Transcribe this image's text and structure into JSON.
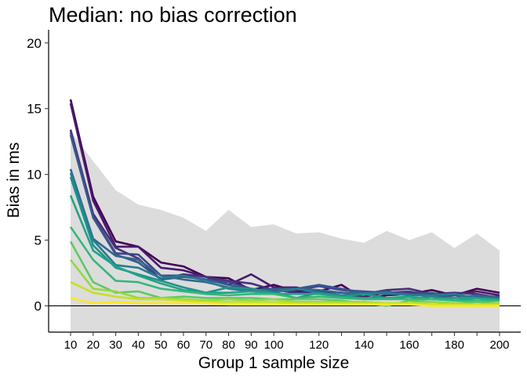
{
  "chart_data": {
    "type": "line",
    "title": "Median: no bias correction",
    "xlabel": "Group 1 sample size",
    "ylabel": "Bias in ms",
    "xlim": [
      10,
      200
    ],
    "ylim": [
      -2,
      21
    ],
    "x_ticks": [
      10,
      20,
      30,
      40,
      50,
      60,
      70,
      80,
      90,
      100,
      120,
      140,
      160,
      180,
      200
    ],
    "y_ticks": [
      0,
      5,
      10,
      15,
      20
    ],
    "grid": false,
    "legend": "none",
    "reference_line": 0,
    "x": [
      10,
      20,
      30,
      40,
      50,
      60,
      70,
      80,
      90,
      100,
      110,
      120,
      130,
      140,
      150,
      160,
      170,
      180,
      190,
      200
    ],
    "band": {
      "color": "#dcdcdc",
      "upper": [
        13.3,
        11.0,
        8.8,
        7.7,
        7.3,
        6.7,
        5.7,
        7.3,
        6.0,
        6.2,
        5.5,
        5.6,
        5.1,
        4.8,
        5.7,
        5.0,
        5.6,
        4.4,
        5.5,
        4.2
      ],
      "lower": [
        -2,
        -2,
        -2,
        -2,
        -2,
        -2,
        -2,
        -2,
        -2,
        -2,
        -2,
        -2,
        -2,
        -2,
        -2,
        -2,
        -2,
        -2,
        -2,
        -2
      ]
    },
    "series": [
      {
        "color": "#440154",
        "values": [
          15.7,
          8.3,
          4.9,
          4.5,
          3.3,
          3.0,
          2.2,
          2.1,
          1.2,
          1.6,
          1.1,
          1.1,
          1.6,
          0.5,
          0.8,
          0.9,
          1.2,
          0.8,
          1.3,
          1.0
        ]
      },
      {
        "color": "#481a6c",
        "values": [
          15.4,
          8.0,
          4.5,
          4.5,
          2.9,
          2.7,
          2.2,
          1.6,
          2.4,
          1.4,
          1.4,
          1.0,
          0.8,
          0.7,
          1.0,
          1.0,
          0.9,
          0.9,
          1.1,
          0.8
        ]
      },
      {
        "color": "#472f7d",
        "values": [
          13.4,
          7.0,
          4.4,
          3.6,
          2.0,
          2.4,
          2.2,
          1.9,
          1.7,
          1.2,
          1.0,
          1.1,
          1.0,
          0.9,
          1.2,
          1.3,
          0.9,
          1.0,
          0.9,
          0.6
        ]
      },
      {
        "color": "#414487",
        "values": [
          13.2,
          6.8,
          4.0,
          3.9,
          2.3,
          2.3,
          2.0,
          1.8,
          1.3,
          1.1,
          1.2,
          1.5,
          1.2,
          1.1,
          1.0,
          1.1,
          0.8,
          0.8,
          0.7,
          0.7
        ]
      },
      {
        "color": "#39568c",
        "values": [
          13.0,
          6.7,
          3.9,
          3.3,
          2.0,
          2.2,
          2.0,
          1.6,
          1.2,
          1.3,
          1.3,
          1.6,
          1.3,
          1.0,
          1.1,
          0.8,
          1.0,
          0.6,
          0.7,
          0.5
        ]
      },
      {
        "color": "#31688e",
        "values": [
          10.4,
          5.1,
          3.8,
          3.5,
          2.3,
          2.0,
          1.8,
          1.4,
          1.1,
          1.2,
          1.3,
          1.2,
          1.0,
          1.0,
          0.9,
          0.9,
          0.7,
          0.6,
          0.8,
          0.6
        ]
      },
      {
        "color": "#287c8e",
        "values": [
          10.1,
          5.0,
          3.1,
          2.9,
          2.1,
          2.3,
          1.9,
          1.3,
          1.1,
          1.0,
          1.3,
          1.0,
          0.8,
          0.9,
          1.0,
          0.8,
          0.8,
          0.9,
          0.6,
          0.5
        ]
      },
      {
        "color": "#21918c",
        "values": [
          9.8,
          4.6,
          2.9,
          2.4,
          1.9,
          1.4,
          1.0,
          1.4,
          1.3,
          1.0,
          0.6,
          1.0,
          0.7,
          0.9,
          0.6,
          0.5,
          0.7,
          0.4,
          0.6,
          0.5
        ]
      },
      {
        "color": "#20a486",
        "values": [
          8.4,
          4.2,
          3.0,
          2.3,
          1.7,
          1.2,
          1.0,
          1.0,
          1.1,
          0.9,
          0.9,
          0.9,
          0.7,
          0.6,
          0.6,
          0.7,
          0.5,
          0.6,
          0.6,
          0.4
        ]
      },
      {
        "color": "#35b779",
        "values": [
          6.0,
          3.5,
          1.9,
          1.8,
          1.3,
          1.1,
          0.9,
          0.8,
          0.9,
          0.9,
          0.6,
          0.7,
          0.6,
          0.5,
          0.5,
          0.5,
          0.5,
          0.4,
          0.4,
          0.4
        ]
      },
      {
        "color": "#5ec962",
        "values": [
          4.9,
          1.8,
          1.0,
          1.1,
          0.6,
          0.7,
          0.6,
          0.6,
          0.6,
          0.5,
          0.5,
          0.5,
          0.4,
          0.2,
          0.0,
          0.4,
          0.3,
          0.2,
          0.3,
          0.2
        ]
      },
      {
        "color": "#95d840",
        "values": [
          3.5,
          1.3,
          1.1,
          0.6,
          0.6,
          0.5,
          0.4,
          0.5,
          0.4,
          0.5,
          0.3,
          0.3,
          0.3,
          0.3,
          0.2,
          0.2,
          0.3,
          0.2,
          0.1,
          0.2
        ]
      },
      {
        "color": "#c8e020",
        "values": [
          1.8,
          1.0,
          0.7,
          0.5,
          0.5,
          0.4,
          0.3,
          0.3,
          0.3,
          0.3,
          0.2,
          0.2,
          0.2,
          0.2,
          0.2,
          0.2,
          0.1,
          0.1,
          0.1,
          0.1
        ]
      },
      {
        "color": "#fde725",
        "values": [
          0.6,
          0.2,
          0.3,
          0.2,
          0.2,
          0.2,
          0.2,
          0.1,
          0.1,
          0.1,
          0.1,
          0.1,
          0.1,
          0.1,
          0.1,
          0.1,
          0.0,
          0.0,
          0.0,
          0.0
        ]
      }
    ]
  }
}
